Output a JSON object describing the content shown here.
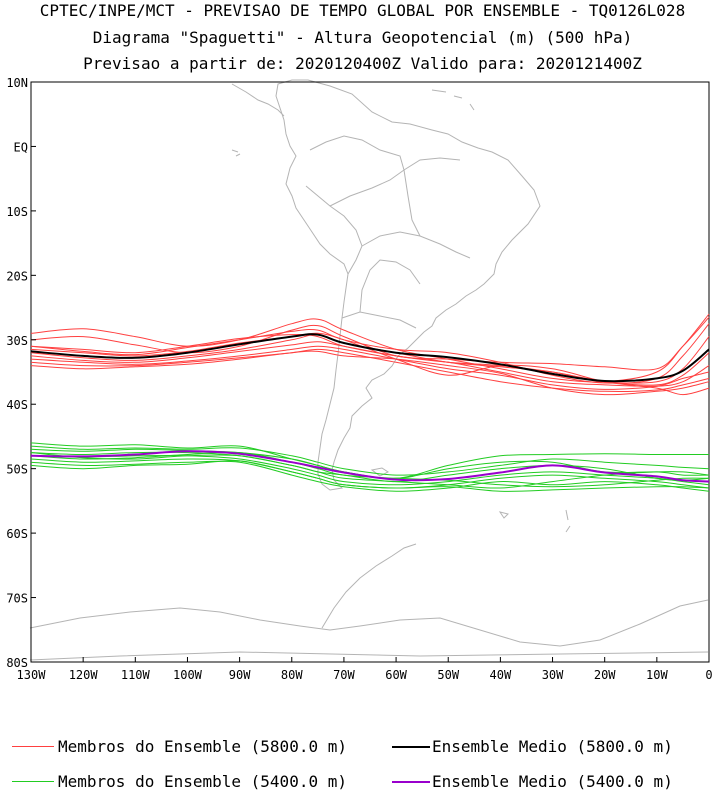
{
  "titles": {
    "line1": "CPTEC/INPE/MCT - PREVISAO DE TEMPO GLOBAL POR ENSEMBLE - TQ0126L028",
    "line2": "Diagrama \"Spaguetti\" - Altura Geopotencial (m) (500 hPa)",
    "line3": "Previsao a partir de: 2020120400Z  Valido para: 2020121400Z"
  },
  "legend": [
    {
      "label": "Membros do Ensemble (5800.0 m)",
      "color": "#ff4040"
    },
    {
      "label": "Ensemble Medio (5800.0 m)",
      "color": "#000000"
    },
    {
      "label": "Membros do Ensemble (5400.0 m)",
      "color": "#22cc22"
    },
    {
      "label": "Ensemble Medio (5400.0 m)",
      "color": "#9900cc"
    }
  ],
  "chart_data": {
    "type": "line",
    "title": "Diagrama Spaguetti - Altura Geopotencial (m) (500 hPa)",
    "xlim": [
      -130,
      0
    ],
    "ylim": [
      -80,
      10
    ],
    "xticks": [
      {
        "v": -130,
        "label": "130W"
      },
      {
        "v": -120,
        "label": "120W"
      },
      {
        "v": -110,
        "label": "110W"
      },
      {
        "v": -100,
        "label": "100W"
      },
      {
        "v": -90,
        "label": "90W"
      },
      {
        "v": -80,
        "label": "80W"
      },
      {
        "v": -70,
        "label": "70W"
      },
      {
        "v": -60,
        "label": "60W"
      },
      {
        "v": -50,
        "label": "50W"
      },
      {
        "v": -40,
        "label": "40W"
      },
      {
        "v": -30,
        "label": "30W"
      },
      {
        "v": -20,
        "label": "20W"
      },
      {
        "v": -10,
        "label": "10W"
      },
      {
        "v": 0,
        "label": "0"
      }
    ],
    "yticks": [
      {
        "v": 10,
        "label": "10N"
      },
      {
        "v": 0,
        "label": "EQ"
      },
      {
        "v": -10,
        "label": "10S"
      },
      {
        "v": -20,
        "label": "20S"
      },
      {
        "v": -30,
        "label": "30S"
      },
      {
        "v": -40,
        "label": "40S"
      },
      {
        "v": -50,
        "label": "50S"
      },
      {
        "v": -60,
        "label": "60S"
      },
      {
        "v": -70,
        "label": "70S"
      },
      {
        "v": -80,
        "label": "80S"
      }
    ],
    "x": [
      -130,
      -120,
      -110,
      -100,
      -90,
      -80,
      -75,
      -70,
      -60,
      -50,
      -40,
      -30,
      -20,
      -10,
      -5,
      0
    ],
    "series_5800_mean": {
      "name": "Ensemble Medio (5800.0 m)",
      "color": "#000000",
      "values": [
        -31.8,
        -32.5,
        -32.8,
        -32.0,
        -30.7,
        -29.5,
        -29.2,
        -30.5,
        -32.0,
        -32.7,
        -33.8,
        -35.3,
        -36.4,
        -36.0,
        -34.8,
        -31.5
      ]
    },
    "series_5400_mean": {
      "name": "Ensemble Medio (5400.0 m)",
      "color": "#9900cc",
      "values": [
        -48.0,
        -48.1,
        -47.8,
        -47.3,
        -47.7,
        -49.0,
        -49.8,
        -50.6,
        -51.7,
        -51.6,
        -50.6,
        -49.5,
        -50.6,
        -51.2,
        -51.8,
        -52.0
      ]
    },
    "series_5800_members": [
      {
        "name": "m1",
        "values": [
          -29.0,
          -28.3,
          -29.5,
          -31.0,
          -30.0,
          -27.5,
          -26.8,
          -28.5,
          -31.5,
          -33.0,
          -34.5,
          -36.0,
          -36.5,
          -35.0,
          -31.0,
          -26.0
        ]
      },
      {
        "name": "m2",
        "values": [
          -30.0,
          -29.5,
          -30.8,
          -32.0,
          -31.0,
          -28.5,
          -27.8,
          -29.5,
          -32.5,
          -33.0,
          -33.5,
          -33.7,
          -34.2,
          -34.5,
          -31.0,
          -26.5
        ]
      },
      {
        "name": "m3",
        "values": [
          -31.0,
          -31.8,
          -32.3,
          -31.2,
          -30.0,
          -28.7,
          -28.5,
          -30.0,
          -31.5,
          -32.0,
          -33.5,
          -35.5,
          -36.7,
          -36.0,
          -32.5,
          -27.5
        ]
      },
      {
        "name": "m4",
        "values": [
          -32.0,
          -32.8,
          -33.2,
          -32.5,
          -31.5,
          -30.0,
          -29.2,
          -30.5,
          -32.0,
          -33.5,
          -34.2,
          -35.0,
          -36.5,
          -37.0,
          -35.5,
          -32.0
        ]
      },
      {
        "name": "m5",
        "values": [
          -32.5,
          -33.2,
          -33.5,
          -32.8,
          -31.8,
          -30.8,
          -30.3,
          -31.0,
          -32.5,
          -33.5,
          -35.0,
          -36.5,
          -37.0,
          -37.2,
          -36.5,
          -34.0
        ]
      },
      {
        "name": "m6",
        "values": [
          -33.0,
          -33.5,
          -33.8,
          -33.3,
          -32.5,
          -31.5,
          -31.0,
          -31.5,
          -33.0,
          -34.5,
          -35.5,
          -37.0,
          -37.7,
          -37.2,
          -36.0,
          -35.0
        ]
      },
      {
        "name": "m7",
        "values": [
          -33.5,
          -34.0,
          -34.0,
          -33.5,
          -32.8,
          -32.0,
          -31.5,
          -32.0,
          -33.5,
          -35.0,
          -36.5,
          -37.5,
          -38.0,
          -37.8,
          -37.0,
          -36.0
        ]
      },
      {
        "name": "m8",
        "values": [
          -34.0,
          -34.5,
          -34.2,
          -33.8,
          -33.0,
          -32.0,
          -31.8,
          -32.5,
          -33.0,
          -34.0,
          -35.2,
          -37.5,
          -38.5,
          -38.0,
          -37.5,
          -36.5
        ]
      },
      {
        "name": "m9",
        "values": [
          -31.5,
          -32.0,
          -32.5,
          -31.8,
          -30.5,
          -29.5,
          -29.0,
          -30.0,
          -33.0,
          -35.5,
          -34.0,
          -34.5,
          -36.5,
          -37.5,
          -38.5,
          -37.5
        ]
      },
      {
        "name": "m10",
        "values": [
          -31.0,
          -31.5,
          -32.0,
          -31.0,
          -29.8,
          -29.2,
          -29.5,
          -31.0,
          -32.5,
          -33.5,
          -34.0,
          -35.0,
          -36.5,
          -36.5,
          -34.5,
          -29.5
        ]
      }
    ],
    "series_5400_members": [
      {
        "name": "n1",
        "values": [
          -46.0,
          -46.5,
          -46.3,
          -46.8,
          -46.5,
          -48.5,
          -49.5,
          -50.5,
          -51.5,
          -49.5,
          -48.0,
          -47.8,
          -47.7,
          -47.8,
          -47.8,
          -47.8
        ]
      },
      {
        "name": "n2",
        "values": [
          -46.5,
          -47.0,
          -46.8,
          -47.0,
          -46.8,
          -48.0,
          -49.0,
          -50.0,
          -51.0,
          -50.5,
          -49.5,
          -48.5,
          -49.0,
          -49.5,
          -49.8,
          -50.0
        ]
      },
      {
        "name": "n3",
        "values": [
          -47.0,
          -47.3,
          -47.0,
          -47.2,
          -47.5,
          -48.5,
          -49.5,
          -50.5,
          -51.5,
          -50.0,
          -49.0,
          -49.0,
          -50.5,
          -50.5,
          -51.0,
          -51.0
        ]
      },
      {
        "name": "n4",
        "values": [
          -47.5,
          -47.8,
          -47.5,
          -47.5,
          -48.0,
          -49.5,
          -50.5,
          -51.0,
          -52.0,
          -51.0,
          -50.0,
          -49.5,
          -50.0,
          -51.5,
          -51.8,
          -51.5
        ]
      },
      {
        "name": "n5",
        "values": [
          -48.0,
          -48.2,
          -48.0,
          -48.0,
          -48.5,
          -50.0,
          -51.0,
          -52.0,
          -52.5,
          -52.0,
          -51.0,
          -50.5,
          -51.0,
          -51.5,
          -52.0,
          -52.5
        ]
      },
      {
        "name": "n6",
        "values": [
          -48.5,
          -49.0,
          -48.8,
          -48.5,
          -48.8,
          -50.5,
          -51.5,
          -52.5,
          -53.0,
          -52.5,
          -51.5,
          -51.0,
          -51.5,
          -52.0,
          -52.5,
          -53.0
        ]
      },
      {
        "name": "n7",
        "values": [
          -49.0,
          -49.5,
          -49.3,
          -49.0,
          -49.0,
          -51.0,
          -52.0,
          -52.8,
          -53.5,
          -53.0,
          -52.0,
          -52.5,
          -52.0,
          -52.5,
          -53.0,
          -53.5
        ]
      },
      {
        "name": "n8",
        "values": [
          -49.5,
          -50.0,
          -49.5,
          -49.3,
          -48.8,
          -50.5,
          -51.5,
          -52.5,
          -53.0,
          -52.8,
          -53.5,
          -53.3,
          -53.0,
          -52.8,
          -52.8,
          -53.0
        ]
      },
      {
        "name": "n9",
        "values": [
          -47.5,
          -48.3,
          -48.5,
          -48.0,
          -48.0,
          -49.5,
          -50.5,
          -51.5,
          -52.0,
          -52.5,
          -53.0,
          -52.0,
          -51.0,
          -50.5,
          -50.5,
          -51.0
        ]
      },
      {
        "name": "n10",
        "values": [
          -48.0,
          -48.5,
          -48.3,
          -47.8,
          -47.5,
          -49.0,
          -50.0,
          -51.0,
          -51.5,
          -51.8,
          -52.5,
          -52.8,
          -52.5,
          -51.8,
          -51.5,
          -51.5
        ]
      }
    ]
  }
}
